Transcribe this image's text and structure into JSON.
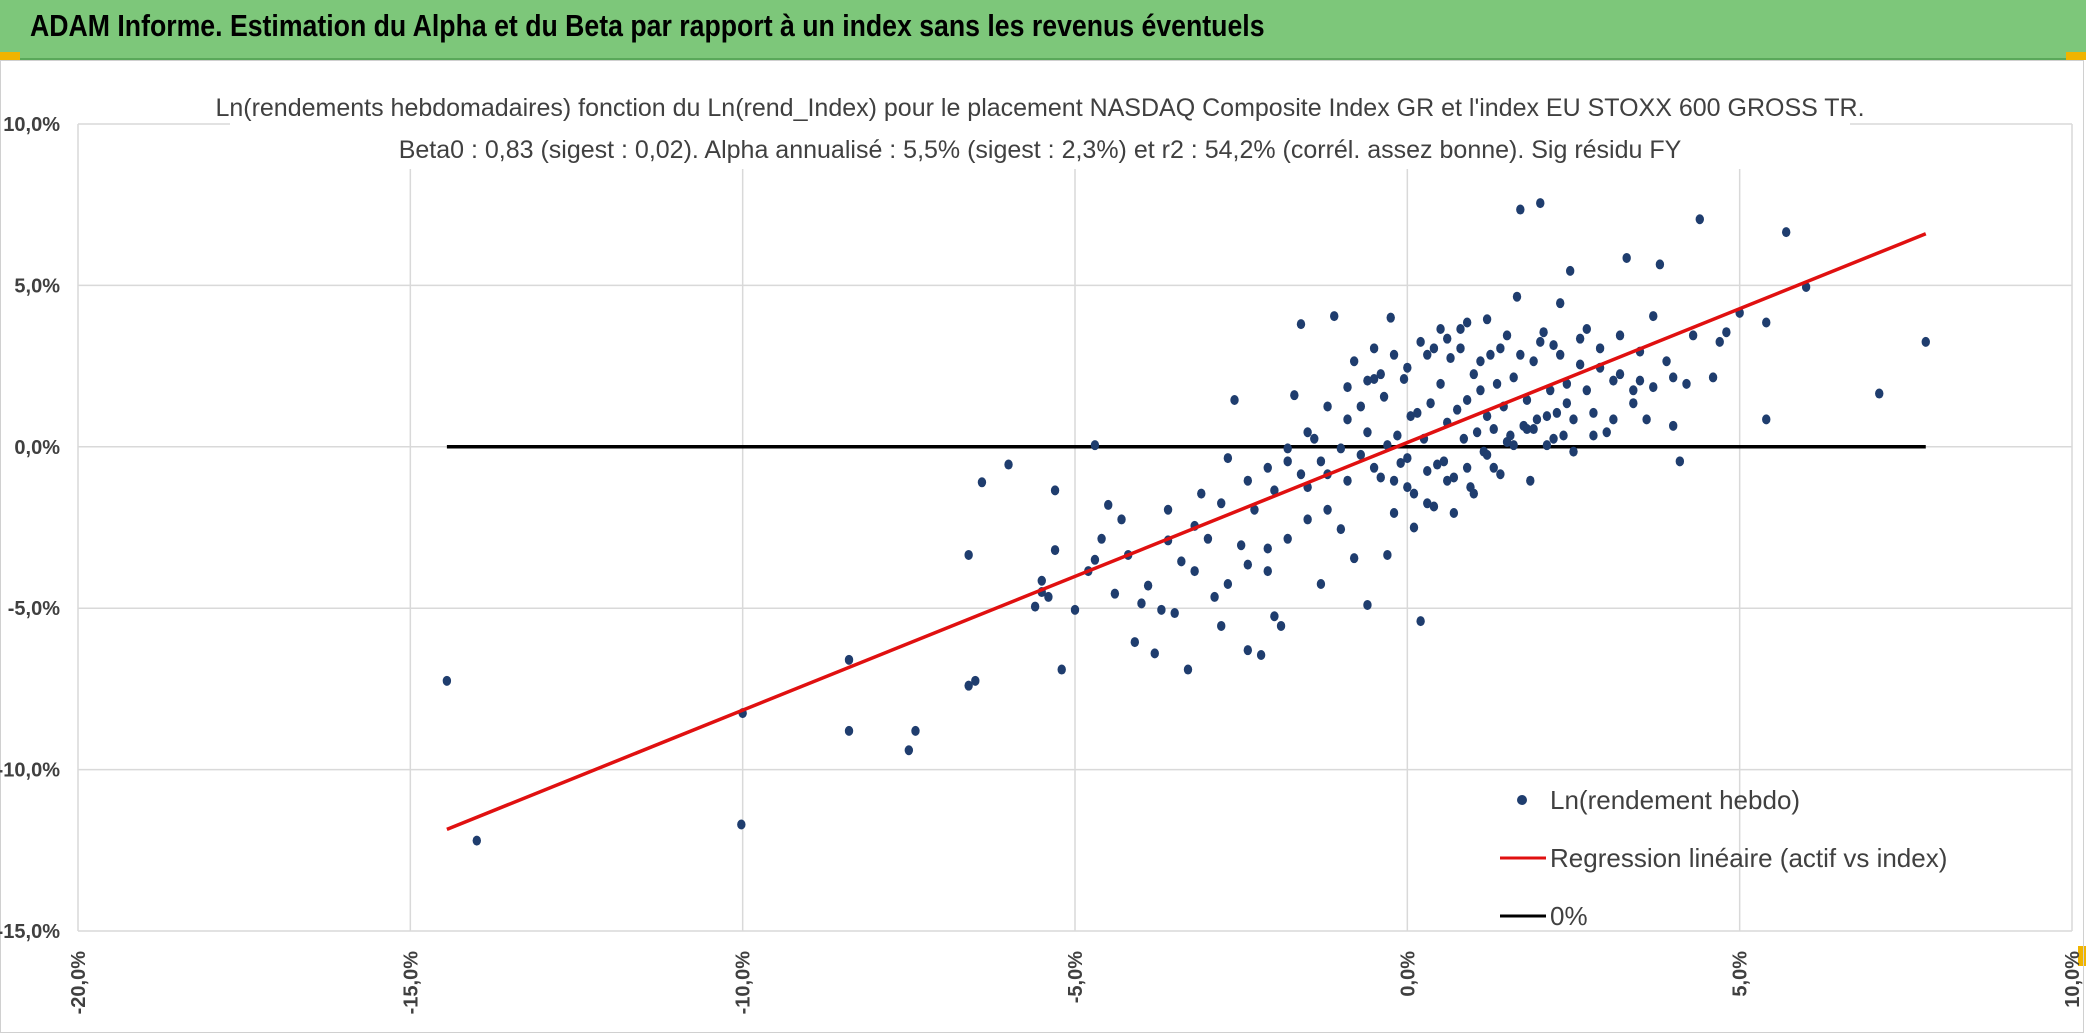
{
  "header": {
    "title": "ADAM Informe. Estimation du Alpha et du Beta par rapport à un index sans les revenus éventuels"
  },
  "colors": {
    "header_bg": "#7dc77a",
    "points": "#1f3d6e",
    "regression": "#e01010",
    "zero": "#000000"
  },
  "chart_data": {
    "type": "scatter",
    "title": [
      "Ln(rendements hebdomadaires) fonction du Ln(rend_Index) pour le placement NASDAQ Composite Index GR et l'index EU STOXX 600 GROSS TR.",
      "Beta0 : 0,83 (sigest : 0,02). Alpha annualisé : 5,5% (sigest : 2,3%) et r2 : 54,2% (corrél. assez bonne). Sig résidu FY"
    ],
    "xlim": [
      -0.2,
      0.1
    ],
    "ylim": [
      -0.15,
      0.1
    ],
    "x_ticks": [
      -0.2,
      -0.15,
      -0.1,
      -0.05,
      0.0,
      0.05,
      0.1
    ],
    "y_ticks": [
      -0.15,
      -0.1,
      -0.05,
      0.0,
      0.05,
      0.1
    ],
    "x_tick_labels": [
      "-20,0%",
      "-15,0%",
      "-10,0%",
      "-5,0%",
      "0,0%",
      "5,0%",
      "10,0%"
    ],
    "y_tick_labels": [
      "-15,0%",
      "-10,0%",
      "-5,0%",
      "0,0%",
      "5,0%",
      "10,0%"
    ],
    "grid": true,
    "legend": {
      "position": "bottom-right",
      "entries": [
        "Ln(rendement hebdo)",
        "Regression linéaire (actif vs index)",
        "0%"
      ]
    },
    "series": [
      {
        "name": "Ln(rendement hebdo)",
        "kind": "points",
        "points": [
          [
            -0.1445,
            -0.0725
          ],
          [
            -0.14,
            -0.122
          ],
          [
            -0.1,
            -0.0825
          ],
          [
            -0.1002,
            -0.117
          ],
          [
            -0.084,
            -0.066
          ],
          [
            -0.084,
            -0.088
          ],
          [
            -0.075,
            -0.094
          ],
          [
            -0.074,
            -0.088
          ],
          [
            -0.066,
            -0.0335
          ],
          [
            -0.066,
            -0.074
          ],
          [
            -0.065,
            -0.0725
          ],
          [
            -0.064,
            -0.011
          ],
          [
            -0.06,
            -0.0055
          ],
          [
            -0.056,
            -0.0495
          ],
          [
            -0.055,
            -0.045
          ],
          [
            -0.055,
            -0.0415
          ],
          [
            -0.054,
            -0.0465
          ],
          [
            -0.053,
            -0.0135
          ],
          [
            -0.053,
            -0.032
          ],
          [
            -0.052,
            -0.069
          ],
          [
            -0.05,
            -0.0505
          ],
          [
            -0.048,
            -0.0385
          ],
          [
            -0.047,
            -0.035
          ],
          [
            -0.047,
            0.0005
          ],
          [
            -0.046,
            -0.0285
          ],
          [
            -0.045,
            -0.018
          ],
          [
            -0.044,
            -0.0455
          ],
          [
            -0.043,
            -0.0225
          ],
          [
            -0.042,
            -0.0335
          ],
          [
            -0.041,
            -0.0605
          ],
          [
            -0.04,
            -0.0485
          ],
          [
            -0.039,
            -0.043
          ],
          [
            -0.038,
            -0.064
          ],
          [
            -0.037,
            -0.0505
          ],
          [
            -0.036,
            -0.029
          ],
          [
            -0.035,
            -0.0515
          ],
          [
            -0.034,
            -0.0355
          ],
          [
            -0.033,
            -0.069
          ],
          [
            -0.032,
            -0.0385
          ],
          [
            -0.031,
            -0.0145
          ],
          [
            -0.03,
            -0.0285
          ],
          [
            -0.029,
            -0.0465
          ],
          [
            -0.028,
            -0.0555
          ],
          [
            -0.027,
            -0.0035
          ],
          [
            -0.026,
            0.0145
          ],
          [
            -0.025,
            -0.0305
          ],
          [
            -0.024,
            -0.063
          ],
          [
            -0.023,
            -0.0195
          ],
          [
            -0.022,
            -0.0645
          ],
          [
            -0.021,
            -0.0385
          ],
          [
            -0.02,
            -0.0525
          ],
          [
            -0.019,
            -0.0555
          ],
          [
            -0.018,
            -0.0045
          ],
          [
            -0.017,
            0.016
          ],
          [
            -0.016,
            0.038
          ],
          [
            -0.015,
            -0.0125
          ],
          [
            -0.014,
            0.0025
          ],
          [
            -0.013,
            -0.0425
          ],
          [
            -0.012,
            -0.0195
          ],
          [
            -0.011,
            0.0405
          ],
          [
            -0.01,
            -0.0255
          ],
          [
            -0.009,
            -0.0105
          ],
          [
            -0.008,
            -0.0345
          ],
          [
            -0.007,
            0.0125
          ],
          [
            -0.006,
            -0.049
          ],
          [
            -0.005,
            0.021
          ],
          [
            -0.004,
            -0.0095
          ],
          [
            -0.0035,
            0.0155
          ],
          [
            -0.003,
            -0.0335
          ],
          [
            -0.0025,
            0.04
          ],
          [
            -0.002,
            -0.0205
          ],
          [
            -0.0015,
            0.0035
          ],
          [
            -0.001,
            -0.005
          ],
          [
            -0.0005,
            0.021
          ],
          [
            0.0,
            -0.0125
          ],
          [
            0.0005,
            0.0095
          ],
          [
            0.001,
            -0.025
          ],
          [
            0.0015,
            0.0105
          ],
          [
            0.002,
            -0.054
          ],
          [
            0.0025,
            0.0025
          ],
          [
            0.003,
            -0.0175
          ],
          [
            0.0035,
            0.0135
          ],
          [
            0.004,
            0.0305
          ],
          [
            0.0045,
            -0.0055
          ],
          [
            0.005,
            0.0195
          ],
          [
            0.0055,
            -0.0045
          ],
          [
            0.006,
            0.0075
          ],
          [
            0.0065,
            0.0275
          ],
          [
            0.007,
            -0.0095
          ],
          [
            0.0075,
            0.0115
          ],
          [
            0.008,
            0.0365
          ],
          [
            0.0085,
            0.0025
          ],
          [
            0.009,
            0.0145
          ],
          [
            0.0095,
            -0.0125
          ],
          [
            0.01,
            0.0225
          ],
          [
            0.0105,
            0.0045
          ],
          [
            0.011,
            0.0175
          ],
          [
            0.0115,
            -0.0015
          ],
          [
            0.012,
            0.0095
          ],
          [
            0.0125,
            0.0285
          ],
          [
            0.013,
            0.0055
          ],
          [
            0.0135,
            0.0195
          ],
          [
            0.014,
            -0.0085
          ],
          [
            0.0145,
            0.0125
          ],
          [
            0.015,
            0.0345
          ],
          [
            0.0155,
            0.0035
          ],
          [
            0.016,
            0.0215
          ],
          [
            0.0165,
            0.0465
          ],
          [
            0.017,
            0.0735
          ],
          [
            0.0175,
            0.0065
          ],
          [
            0.018,
            0.0145
          ],
          [
            0.0185,
            -0.0105
          ],
          [
            0.019,
            0.0265
          ],
          [
            0.0195,
            0.0085
          ],
          [
            0.02,
            0.0755
          ],
          [
            0.0205,
            0.0355
          ],
          [
            0.021,
            0.0005
          ],
          [
            0.0215,
            0.0175
          ],
          [
            0.022,
            0.0315
          ],
          [
            0.0225,
            0.0105
          ],
          [
            0.023,
            0.0445
          ],
          [
            0.0235,
            0.0035
          ],
          [
            0.024,
            0.0195
          ],
          [
            0.0245,
            0.0545
          ],
          [
            0.025,
            0.0085
          ],
          [
            0.026,
            0.0255
          ],
          [
            0.027,
            0.0365
          ],
          [
            0.028,
            0.0105
          ],
          [
            0.029,
            0.0305
          ],
          [
            0.03,
            0.0045
          ],
          [
            0.031,
            0.0205
          ],
          [
            0.032,
            0.0345
          ],
          [
            0.033,
            0.0585
          ],
          [
            0.034,
            0.0175
          ],
          [
            0.035,
            0.0295
          ],
          [
            0.036,
            0.0085
          ],
          [
            0.037,
            0.0405
          ],
          [
            0.038,
            0.0565
          ],
          [
            0.039,
            0.0265
          ],
          [
            0.04,
            0.0065
          ],
          [
            0.041,
            -0.0045
          ],
          [
            0.042,
            0.0195
          ],
          [
            0.043,
            0.0345
          ],
          [
            0.044,
            0.0705
          ],
          [
            0.046,
            0.0215
          ],
          [
            0.047,
            0.0325
          ],
          [
            0.048,
            0.0355
          ],
          [
            0.05,
            0.0415
          ],
          [
            0.054,
            0.0385
          ],
          [
            0.054,
            0.0085
          ],
          [
            0.057,
            0.0665
          ],
          [
            0.06,
            0.0495
          ],
          [
            0.071,
            0.0165
          ],
          [
            0.078,
            0.0325
          ],
          [
            -0.012,
            0.0125
          ],
          [
            -0.009,
            0.0185
          ],
          [
            -0.006,
            0.0205
          ],
          [
            -0.004,
            0.0225
          ],
          [
            0.0,
            0.0245
          ],
          [
            0.003,
            0.0285
          ],
          [
            0.006,
            0.0335
          ],
          [
            0.009,
            0.0385
          ],
          [
            0.012,
            0.0395
          ],
          [
            -0.015,
            -0.0225
          ],
          [
            -0.018,
            -0.0285
          ],
          [
            -0.021,
            -0.0315
          ],
          [
            -0.024,
            -0.0365
          ],
          [
            -0.027,
            -0.0425
          ],
          [
            -0.02,
            -0.0135
          ],
          [
            -0.016,
            -0.0085
          ],
          [
            -0.013,
            -0.0045
          ],
          [
            -0.01,
            -0.0005
          ],
          [
            -0.007,
            -0.0025
          ],
          [
            -0.005,
            -0.0065
          ],
          [
            -0.002,
            -0.0105
          ],
          [
            0.001,
            -0.0145
          ],
          [
            0.004,
            -0.0185
          ],
          [
            0.007,
            -0.0205
          ],
          [
            0.01,
            -0.0145
          ],
          [
            0.013,
            -0.0065
          ],
          [
            0.016,
            0.0005
          ],
          [
            0.019,
            0.0055
          ],
          [
            0.022,
            0.0025
          ],
          [
            0.025,
            -0.0015
          ],
          [
            0.028,
            0.0035
          ],
          [
            0.031,
            0.0085
          ],
          [
            0.034,
            0.0135
          ],
          [
            0.037,
            0.0185
          ],
          [
            0.04,
            0.0215
          ],
          [
            0.027,
            0.0175
          ],
          [
            0.024,
            0.0135
          ],
          [
            0.021,
            0.0095
          ],
          [
            0.018,
            0.0055
          ],
          [
            0.015,
            0.0015
          ],
          [
            0.012,
            -0.0025
          ],
          [
            0.009,
            -0.0065
          ],
          [
            0.006,
            -0.0105
          ],
          [
            0.003,
            -0.0075
          ],
          [
            0.0,
            -0.0035
          ],
          [
            -0.003,
            0.0005
          ],
          [
            -0.006,
            0.0045
          ],
          [
            -0.009,
            0.0085
          ],
          [
            -0.012,
            -0.0085
          ],
          [
            -0.015,
            0.0045
          ],
          [
            -0.018,
            -0.0005
          ],
          [
            -0.021,
            -0.0065
          ],
          [
            -0.024,
            -0.0105
          ],
          [
            -0.028,
            -0.0175
          ],
          [
            -0.032,
            -0.0245
          ],
          [
            -0.036,
            -0.0195
          ],
          [
            -0.008,
            0.0265
          ],
          [
            -0.005,
            0.0305
          ],
          [
            -0.002,
            0.0285
          ],
          [
            0.002,
            0.0325
          ],
          [
            0.005,
            0.0365
          ],
          [
            0.008,
            0.0305
          ],
          [
            0.011,
            0.0265
          ],
          [
            0.014,
            0.0305
          ],
          [
            0.017,
            0.0285
          ],
          [
            0.02,
            0.0325
          ],
          [
            0.023,
            0.0285
          ],
          [
            0.026,
            0.0335
          ],
          [
            0.029,
            0.0245
          ],
          [
            0.032,
            0.0225
          ],
          [
            0.035,
            0.0205
          ]
        ]
      },
      {
        "name": "Regression linéaire (actif vs index)",
        "kind": "line",
        "points": [
          [
            -0.1445,
            -0.1185
          ],
          [
            0.078,
            0.066
          ]
        ]
      },
      {
        "name": "0%",
        "kind": "line",
        "points": [
          [
            -0.1445,
            0.0
          ],
          [
            0.078,
            0.0
          ]
        ]
      }
    ]
  }
}
